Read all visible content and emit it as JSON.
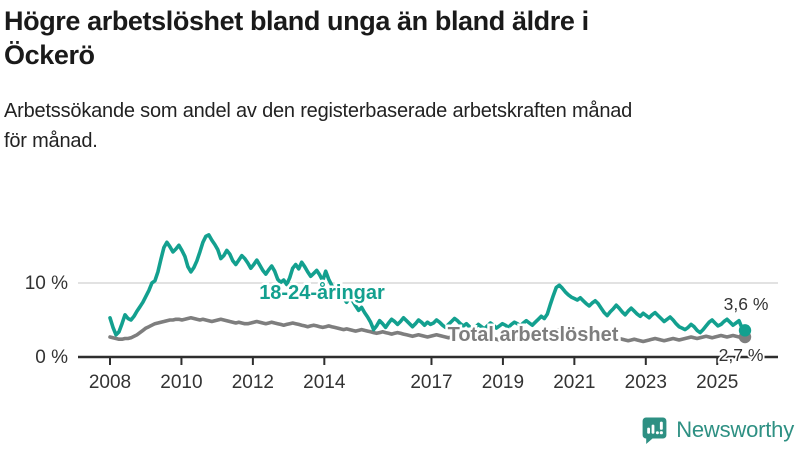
{
  "header": {
    "title_lines": [
      "Högre arbetslöshet bland unga än bland äldre i",
      "Öckerö"
    ],
    "subtitle_lines": [
      "Arbetssökande som andel av den registerbaserade arbetskraften månad",
      "för månad."
    ]
  },
  "logo": {
    "text": "Newsworthy",
    "icon": "bar-chart-speech-bubble-icon",
    "color": "#2e9083"
  },
  "colors": {
    "youth_line": "#13a08f",
    "total_line": "#7e7e7e",
    "axis": "#2e2e2e",
    "gridline": "#d9d9d9",
    "tick_text": "#333333",
    "end_label_text": "#333333"
  },
  "chart_data": {
    "type": "line",
    "title": "Högre arbetslöshet bland unga än bland äldre i Öckerö",
    "subtitle": "Arbetssökande som andel av den registerbaserade arbetskraften månad för månad.",
    "x_unit": "month",
    "x_start": "2008-01",
    "x_end": "2025-09",
    "ylim": [
      0,
      17
    ],
    "grid": "horizontal-at-10-only",
    "legend_position": "inline-labels-on-lines",
    "y_ticks": [
      {
        "value": 0,
        "label": "0 %"
      },
      {
        "value": 10,
        "label": "10 %",
        "gridline": true
      }
    ],
    "x_ticks": [
      {
        "year": 2008,
        "label": "2008"
      },
      {
        "year": 2010,
        "label": "2010"
      },
      {
        "year": 2012,
        "label": "2012"
      },
      {
        "year": 2014,
        "label": "2014"
      },
      {
        "year": 2017,
        "label": "2017"
      },
      {
        "year": 2019,
        "label": "2019"
      },
      {
        "year": 2021,
        "label": "2021"
      },
      {
        "year": 2023,
        "label": "2023"
      },
      {
        "year": 2025,
        "label": "2025"
      }
    ],
    "series": [
      {
        "name": "Total arbetslöshet",
        "color": "#7e7e7e",
        "end_label": "2,7 %",
        "end_value": 2.7,
        "values": [
          2.7,
          2.6,
          2.5,
          2.4,
          2.4,
          2.5,
          2.5,
          2.6,
          2.8,
          3.0,
          3.3,
          3.6,
          3.9,
          4.1,
          4.3,
          4.5,
          4.6,
          4.7,
          4.8,
          4.9,
          5.0,
          5.0,
          5.1,
          5.1,
          5.0,
          5.1,
          5.2,
          5.3,
          5.2,
          5.1,
          5.0,
          5.1,
          5.0,
          4.9,
          4.8,
          4.9,
          5.0,
          5.1,
          5.0,
          4.9,
          4.8,
          4.7,
          4.6,
          4.7,
          4.6,
          4.5,
          4.5,
          4.6,
          4.7,
          4.8,
          4.7,
          4.6,
          4.5,
          4.6,
          4.7,
          4.6,
          4.5,
          4.4,
          4.3,
          4.4,
          4.5,
          4.6,
          4.5,
          4.4,
          4.3,
          4.2,
          4.1,
          4.2,
          4.3,
          4.2,
          4.1,
          4.0,
          4.1,
          4.2,
          4.1,
          4.0,
          3.9,
          3.8,
          3.7,
          3.8,
          3.7,
          3.6,
          3.5,
          3.6,
          3.7,
          3.6,
          3.5,
          3.4,
          3.3,
          3.2,
          3.3,
          3.4,
          3.3,
          3.2,
          3.1,
          3.2,
          3.3,
          3.2,
          3.1,
          3.0,
          2.9,
          2.8,
          2.9,
          3.0,
          2.9,
          2.8,
          2.7,
          2.8,
          2.9,
          3.0,
          2.9,
          2.8,
          2.7,
          2.6,
          2.7,
          2.8,
          2.7,
          2.6,
          2.5,
          2.6,
          2.7,
          2.6,
          2.5,
          2.4,
          2.3,
          2.4,
          2.5,
          2.6,
          2.5,
          2.4,
          2.3,
          2.4,
          2.5,
          2.6,
          2.5,
          2.4,
          2.5,
          2.6,
          2.7,
          2.8,
          2.7,
          2.6,
          2.5,
          2.6,
          2.7,
          2.8,
          3.0,
          3.3,
          3.5,
          3.6,
          3.7,
          3.6,
          3.5,
          3.4,
          3.3,
          3.2,
          3.3,
          3.4,
          3.3,
          3.2,
          3.1,
          3.0,
          2.9,
          2.8,
          2.7,
          2.6,
          2.5,
          2.6,
          2.7,
          2.6,
          2.5,
          2.4,
          2.3,
          2.2,
          2.3,
          2.4,
          2.3,
          2.2,
          2.1,
          2.2,
          2.3,
          2.4,
          2.5,
          2.4,
          2.3,
          2.2,
          2.3,
          2.4,
          2.5,
          2.4,
          2.3,
          2.4,
          2.5,
          2.6,
          2.7,
          2.6,
          2.5,
          2.6,
          2.7,
          2.8,
          2.7,
          2.6,
          2.7,
          2.8,
          2.9,
          2.8,
          2.7,
          2.8,
          2.9,
          2.8,
          2.7,
          2.6,
          2.7
        ]
      },
      {
        "name": "18-24-åringar",
        "color": "#13a08f",
        "end_label": "3,6 %",
        "end_value": 3.6,
        "values": [
          5.3,
          4.0,
          3.0,
          3.4,
          4.5,
          5.7,
          5.2,
          5.0,
          5.5,
          6.2,
          6.8,
          7.4,
          8.2,
          9.0,
          10.0,
          10.3,
          11.5,
          13.2,
          14.8,
          15.5,
          14.9,
          14.2,
          14.6,
          15.1,
          14.4,
          13.6,
          12.2,
          11.5,
          12.1,
          13.0,
          14.2,
          15.5,
          16.3,
          16.5,
          15.8,
          15.2,
          14.5,
          13.3,
          13.7,
          14.4,
          13.9,
          13.0,
          12.5,
          13.1,
          13.7,
          13.3,
          12.7,
          12.0,
          12.5,
          13.1,
          12.4,
          11.7,
          11.2,
          11.8,
          12.3,
          11.6,
          10.5,
          10.1,
          10.4,
          9.8,
          10.7,
          12.0,
          12.5,
          11.9,
          12.8,
          12.2,
          11.5,
          10.9,
          11.3,
          11.7,
          11.1,
          10.3,
          11.6,
          10.5,
          9.7,
          9.0,
          9.4,
          8.6,
          7.9,
          7.4,
          8.0,
          7.6,
          6.9,
          6.3,
          6.7,
          6.0,
          5.4,
          4.7,
          3.7,
          4.2,
          4.9,
          4.5,
          4.0,
          4.6,
          5.1,
          4.8,
          4.4,
          4.8,
          5.3,
          4.9,
          4.5,
          4.1,
          4.5,
          5.0,
          4.7,
          4.3,
          4.7,
          4.4,
          4.6,
          5.0,
          4.7,
          4.3,
          4.0,
          4.4,
          4.8,
          5.2,
          4.9,
          4.5,
          4.2,
          4.5,
          4.1,
          3.7,
          4.0,
          4.4,
          4.1,
          3.8,
          4.2,
          4.6,
          4.3,
          3.9,
          4.2,
          4.5,
          4.3,
          4.0,
          4.4,
          4.7,
          4.5,
          4.2,
          4.6,
          4.9,
          4.6,
          4.3,
          4.7,
          5.1,
          5.5,
          5.2,
          5.8,
          7.1,
          8.3,
          9.4,
          9.7,
          9.3,
          8.8,
          8.4,
          8.1,
          7.9,
          7.7,
          8.0,
          7.6,
          7.2,
          6.9,
          7.3,
          7.6,
          7.2,
          6.6,
          6.0,
          5.6,
          6.1,
          6.5,
          7.0,
          6.6,
          6.1,
          5.7,
          6.2,
          6.6,
          6.2,
          5.8,
          5.5,
          5.9,
          5.6,
          5.3,
          5.7,
          6.0,
          5.6,
          5.2,
          4.8,
          5.1,
          5.4,
          5.0,
          4.5,
          4.1,
          3.9,
          3.7,
          4.0,
          4.4,
          4.1,
          3.6,
          3.3,
          3.7,
          4.2,
          4.7,
          5.0,
          4.6,
          4.2,
          4.4,
          4.8,
          5.1,
          4.7,
          4.3,
          4.6,
          4.9,
          3.9,
          3.6
        ]
      }
    ]
  }
}
